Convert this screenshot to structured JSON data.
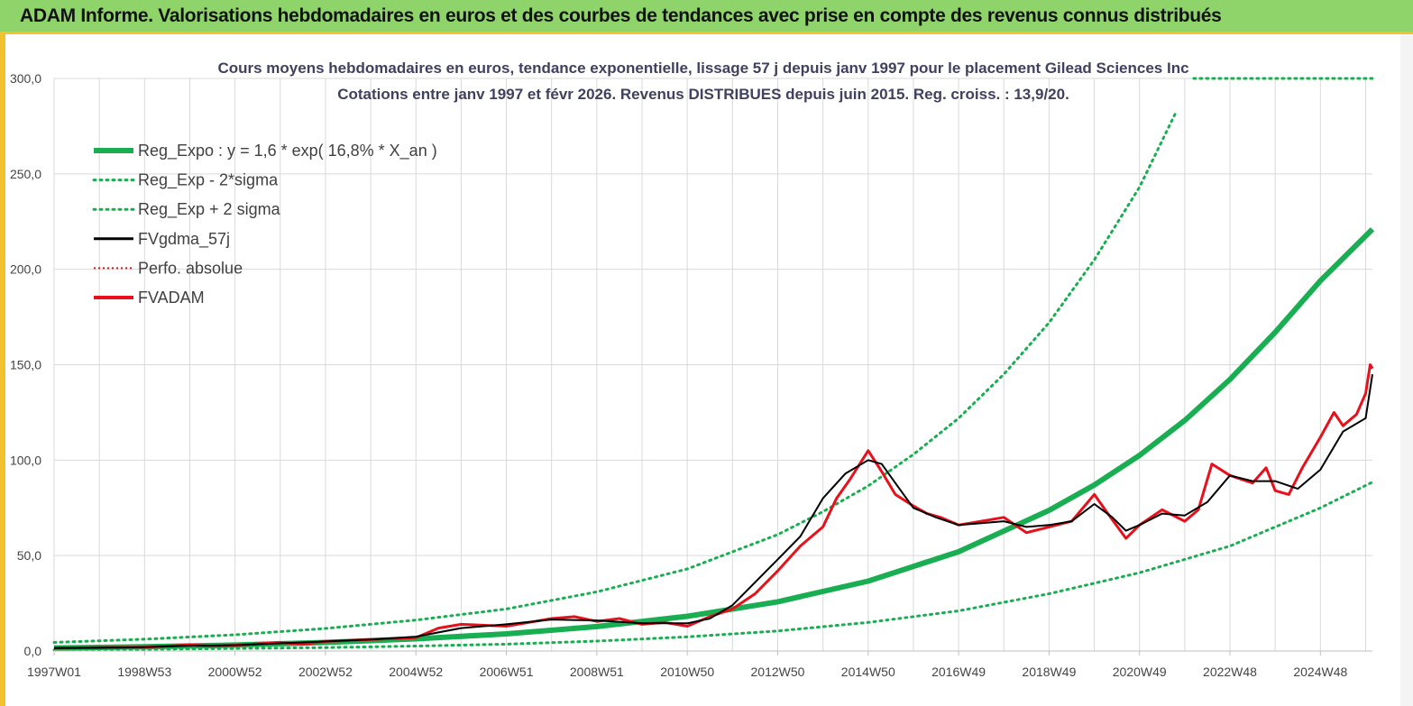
{
  "header": {
    "title": "ADAM Informe. Valorisations hebdomadaires en euros et des courbes de tendances avec prise en compte des revenus connus distribués"
  },
  "colors": {
    "header_bg": "#8fd46a",
    "accent": "#f2c12e",
    "reg_green": "#1aae52",
    "fvadam_red": "#e8101a",
    "fvgdma_black": "#000000",
    "grid": "#d9d9d9"
  },
  "chart_data": {
    "type": "line",
    "title_line1": "Cours moyens hebdomadaires en euros, tendance exponentielle, lissage 57 j depuis janv 1997 pour le  placement Gilead Sciences Inc",
    "title_line2": "Cotations entre janv 1997 et févr 2026. Revenus DISTRIBUES depuis juin 2015. Reg. croiss. : 13,9/20.",
    "xlabel": "",
    "ylabel": "",
    "ylim": [
      0,
      300
    ],
    "xlim": [
      1997.0,
      2026.15
    ],
    "y_ticks": [
      0,
      50,
      100,
      150,
      200,
      250,
      300
    ],
    "y_tick_labels": [
      "0,0",
      "50,0",
      "100,0",
      "150,0",
      "200,0",
      "250,0",
      "300,0"
    ],
    "x_ticks": [
      1997.0,
      1999.0,
      2001.0,
      2003.0,
      2005.0,
      2007.0,
      2009.0,
      2011.0,
      2013.0,
      2015.0,
      2017.0,
      2019.0,
      2021.0,
      2023.0,
      2025.0
    ],
    "x_tick_labels": [
      "1997W01",
      "1998W53",
      "2000W52",
      "2002W52",
      "2004W52",
      "2006W51",
      "2008W51",
      "2010W50",
      "2012W50",
      "2014W50",
      "2016W49",
      "2018W49",
      "2020W49",
      "2022W48",
      "2024W48"
    ],
    "legend": [
      {
        "label": "Reg_Expo : y = 1,6 * exp( 16,8% *  X_an )",
        "series": "Reg_Expo"
      },
      {
        "label": "Reg_Exp - 2*sigma",
        "series": "Reg_Exp_minus"
      },
      {
        "label": "Reg_Exp + 2 sigma",
        "series": "Reg_Exp_plus"
      },
      {
        "label": "FVgdma_57j",
        "series": "FVgdma_57j"
      },
      {
        "label": "Perfo. absolue",
        "series": "Perfo"
      },
      {
        "label": "FVADAM",
        "series": "FVADAM"
      }
    ],
    "series": [
      {
        "name": "Reg_Expo",
        "style": "solid-thick",
        "color": "#1aae52",
        "x": [
          1997.0,
          1999.0,
          2001.0,
          2003.0,
          2005.0,
          2007.0,
          2009.0,
          2011.0,
          2013.0,
          2015.0,
          2017.0,
          2019.0,
          2020.0,
          2021.0,
          2022.0,
          2023.0,
          2024.0,
          2025.0,
          2026.15
        ],
        "y": [
          1.6,
          2.2,
          3.1,
          4.5,
          6.4,
          9.0,
          12.8,
          18.2,
          25.8,
          36.6,
          52.0,
          73.7,
          87.0,
          102.5,
          120.8,
          142.3,
          167.0,
          194.0,
          221.0
        ]
      },
      {
        "name": "Reg_Exp_minus",
        "style": "dotted",
        "color": "#1aae52",
        "x": [
          1997.0,
          1999.0,
          2001.0,
          2003.0,
          2005.0,
          2007.0,
          2009.0,
          2011.0,
          2013.0,
          2015.0,
          2017.0,
          2019.0,
          2021.0,
          2023.0,
          2025.0,
          2026.15
        ],
        "y": [
          0.6,
          0.9,
          1.3,
          1.8,
          2.6,
          3.6,
          5.2,
          7.4,
          10.5,
          15.0,
          21.0,
          30.0,
          41.0,
          55.0,
          75.0,
          88.5
        ]
      },
      {
        "name": "Reg_Exp_plus",
        "style": "dotted",
        "color": "#1aae52",
        "x": [
          1997.0,
          1999.0,
          2001.0,
          2003.0,
          2005.0,
          2007.0,
          2009.0,
          2011.0,
          2013.0,
          2014.0,
          2015.0,
          2016.0,
          2017.0,
          2018.0,
          2019.0,
          2020.0,
          2021.0,
          2021.8
        ],
        "y": [
          4.5,
          6.2,
          8.5,
          11.8,
          16.2,
          22.0,
          31.0,
          43.0,
          61.0,
          73.0,
          86.5,
          103.0,
          122.0,
          145.0,
          172.0,
          205.0,
          243.0,
          282.0
        ]
      },
      {
        "name": "Reg_Exp_plus_capped",
        "style": "dotted",
        "color": "#1aae52",
        "x": [
          2022.2,
          2026.15
        ],
        "y": [
          300.0,
          300.0
        ]
      },
      {
        "name": "FVgdma_57j",
        "style": "solid",
        "color": "#000000",
        "x": [
          1997.0,
          1998.0,
          1999.0,
          2000.0,
          2001.0,
          2002.0,
          2003.0,
          2004.0,
          2005.0,
          2006.0,
          2007.0,
          2008.0,
          2009.0,
          2010.0,
          2011.0,
          2011.5,
          2012.0,
          2012.5,
          2013.0,
          2013.5,
          2014.0,
          2014.5,
          2015.0,
          2015.3,
          2015.6,
          2016.0,
          2016.5,
          2017.0,
          2017.5,
          2018.0,
          2018.5,
          2019.0,
          2019.5,
          2020.0,
          2020.4,
          2020.7,
          2021.0,
          2021.5,
          2022.0,
          2022.5,
          2023.0,
          2023.5,
          2024.0,
          2024.5,
          2025.0,
          2025.5,
          2026.0,
          2026.15
        ],
        "y": [
          1.5,
          1.7,
          2.0,
          2.8,
          3.0,
          4.0,
          5.0,
          6.0,
          7.5,
          12.0,
          14.0,
          16.5,
          16.0,
          14.5,
          14.5,
          17.0,
          24.0,
          36.0,
          48.0,
          60.0,
          80.0,
          93.0,
          100.0,
          98.0,
          88.0,
          75.0,
          70.0,
          66.0,
          67.0,
          68.0,
          65.0,
          66.0,
          68.0,
          77.0,
          70.0,
          63.0,
          66.0,
          72.0,
          71.0,
          78.0,
          92.0,
          89.0,
          89.0,
          85.0,
          95.0,
          115.0,
          122.0,
          145.0
        ]
      },
      {
        "name": "FVADAM",
        "style": "solid-thick",
        "color": "#e8101a",
        "x": [
          1997.0,
          1998.0,
          1999.0,
          2000.0,
          2000.5,
          2001.0,
          2002.0,
          2002.5,
          2003.0,
          2004.0,
          2005.0,
          2005.5,
          2006.0,
          2007.0,
          2007.5,
          2008.0,
          2008.5,
          2009.0,
          2009.5,
          2010.0,
          2010.5,
          2011.0,
          2011.5,
          2012.0,
          2012.5,
          2013.0,
          2013.5,
          2014.0,
          2014.3,
          2014.6,
          2015.0,
          2015.3,
          2015.6,
          2016.0,
          2016.3,
          2016.6,
          2017.0,
          2017.5,
          2018.0,
          2018.5,
          2019.0,
          2019.5,
          2020.0,
          2020.3,
          2020.7,
          2021.0,
          2021.5,
          2022.0,
          2022.3,
          2022.6,
          2023.0,
          2023.5,
          2023.8,
          2024.0,
          2024.3,
          2024.6,
          2025.0,
          2025.3,
          2025.5,
          2025.8,
          2026.0,
          2026.1,
          2026.15
        ],
        "y": [
          1.5,
          1.8,
          2.0,
          3.2,
          2.5,
          3.0,
          4.5,
          3.5,
          5.0,
          6.0,
          7.0,
          12.0,
          14.0,
          13.0,
          15.0,
          17.0,
          18.0,
          15.5,
          17.0,
          14.0,
          15.0,
          13.0,
          18.0,
          22.0,
          30.0,
          42.0,
          55.0,
          65.0,
          80.0,
          90.0,
          105.0,
          94.0,
          82.0,
          76.0,
          72.0,
          70.0,
          66.0,
          68.0,
          70.0,
          62.0,
          65.0,
          68.0,
          82.0,
          72.0,
          59.0,
          66.0,
          74.0,
          68.0,
          74.0,
          98.0,
          92.0,
          88.0,
          96.0,
          84.0,
          82.0,
          96.0,
          112.0,
          125.0,
          118.0,
          124.0,
          135.0,
          150.0,
          148.0
        ]
      }
    ]
  }
}
